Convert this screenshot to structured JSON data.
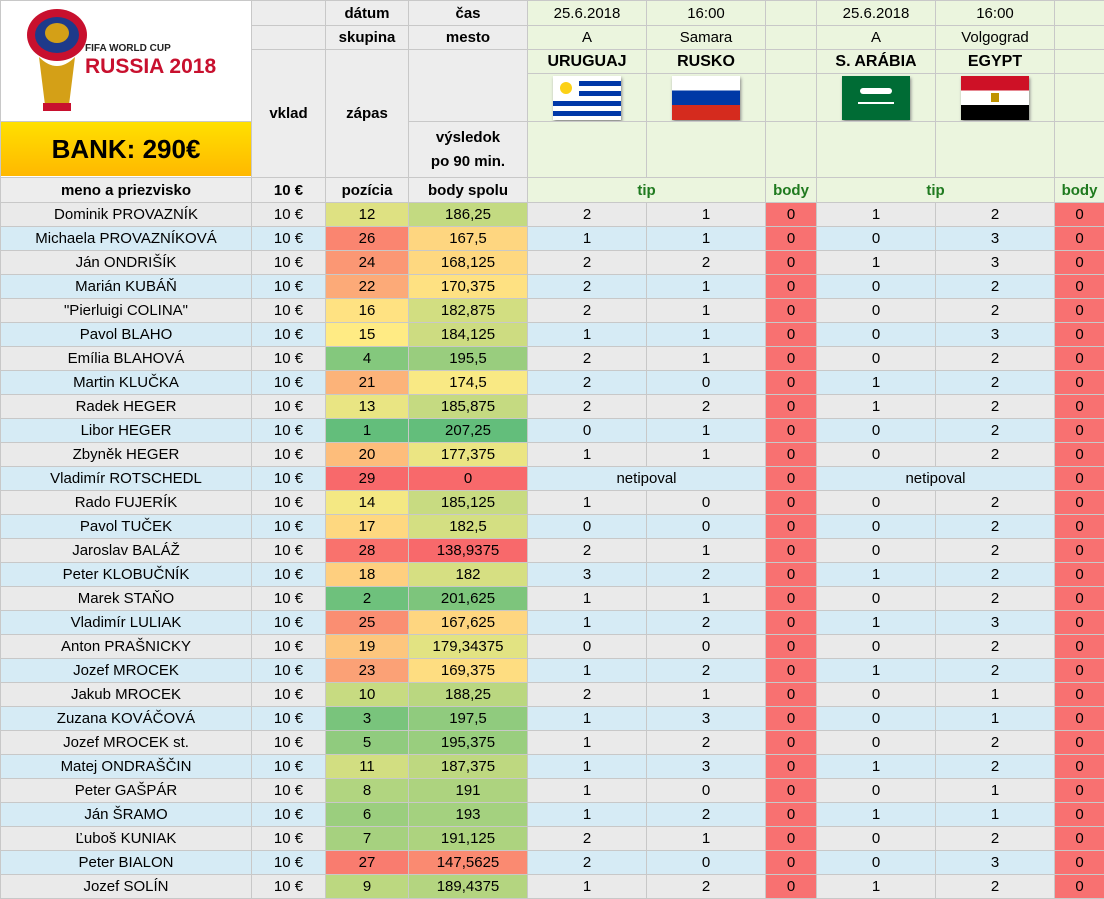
{
  "header": {
    "datum": "dátum",
    "cas": "čas",
    "skupina": "skupina",
    "mesto": "mesto",
    "vklad": "vklad",
    "zapas": "zápas",
    "vysledok1": "výsledok",
    "vysledok2": "po 90 min.",
    "meno": "meno a priezvisko",
    "vklad_val": "10 €",
    "pozicia": "pozícia",
    "body_spolu": "body spolu",
    "tip": "tip",
    "body": "body",
    "bank": "BANK: 290€",
    "logo_top": "FIFA WORLD CUP",
    "logo_main": "RUSSIA 2018"
  },
  "matches": [
    {
      "date": "25.6.2018",
      "time": "16:00",
      "group": "A",
      "city": "Samara",
      "home": "URUGUAJ",
      "away": "RUSKO",
      "home_flag": "uruguay-flag-icon",
      "away_flag": "russia-flag-icon"
    },
    {
      "date": "25.6.2018",
      "time": "16:00",
      "group": "A",
      "city": "Volgograd",
      "home": "S. ARÁBIA",
      "away": "EGYPT",
      "home_flag": "saudi-arabia-flag-icon",
      "away_flag": "egypt-flag-icon"
    }
  ],
  "colors": {
    "row_a": "#eaeaea",
    "row_b": "#d6ebf5",
    "points_red": "#f87171",
    "tip_green": "#1f7a1f"
  },
  "rows": [
    {
      "name": "Dominik PROVAZNÍK",
      "vklad": "10 €",
      "pos": "12",
      "score": "186,25",
      "t1": "2",
      "t2": "1",
      "b1": "0",
      "t3": "1",
      "t4": "2",
      "b2": "0"
    },
    {
      "name": "Michaela PROVAZNÍKOVÁ",
      "vklad": "10 €",
      "pos": "26",
      "score": "167,5",
      "t1": "1",
      "t2": "1",
      "b1": "0",
      "t3": "0",
      "t4": "3",
      "b2": "0"
    },
    {
      "name": "Ján ONDRIŠÍK",
      "vklad": "10 €",
      "pos": "24",
      "score": "168,125",
      "t1": "2",
      "t2": "2",
      "b1": "0",
      "t3": "1",
      "t4": "3",
      "b2": "0"
    },
    {
      "name": "Marián KUBÁŇ",
      "vklad": "10 €",
      "pos": "22",
      "score": "170,375",
      "t1": "2",
      "t2": "1",
      "b1": "0",
      "t3": "0",
      "t4": "2",
      "b2": "0"
    },
    {
      "name": "\"Pierluigi COLINA\"",
      "vklad": "10 €",
      "pos": "16",
      "score": "182,875",
      "t1": "2",
      "t2": "1",
      "b1": "0",
      "t3": "0",
      "t4": "2",
      "b2": "0"
    },
    {
      "name": "Pavol BLAHO",
      "vklad": "10 €",
      "pos": "15",
      "score": "184,125",
      "t1": "1",
      "t2": "1",
      "b1": "0",
      "t3": "0",
      "t4": "3",
      "b2": "0"
    },
    {
      "name": "Emília BLAHOVÁ",
      "vklad": "10 €",
      "pos": "4",
      "score": "195,5",
      "t1": "2",
      "t2": "1",
      "b1": "0",
      "t3": "0",
      "t4": "2",
      "b2": "0"
    },
    {
      "name": "Martin KLUČKA",
      "vklad": "10 €",
      "pos": "21",
      "score": "174,5",
      "t1": "2",
      "t2": "0",
      "b1": "0",
      "t3": "1",
      "t4": "2",
      "b2": "0"
    },
    {
      "name": "Radek HEGER",
      "vklad": "10 €",
      "pos": "13",
      "score": "185,875",
      "t1": "2",
      "t2": "2",
      "b1": "0",
      "t3": "1",
      "t4": "2",
      "b2": "0"
    },
    {
      "name": "Libor HEGER",
      "vklad": "10 €",
      "pos": "1",
      "score": "207,25",
      "t1": "0",
      "t2": "1",
      "b1": "0",
      "t3": "0",
      "t4": "2",
      "b2": "0"
    },
    {
      "name": "Zbyněk HEGER",
      "vklad": "10 €",
      "pos": "20",
      "score": "177,375",
      "t1": "1",
      "t2": "1",
      "b1": "0",
      "t3": "0",
      "t4": "2",
      "b2": "0"
    },
    {
      "name": "Vladimír ROTSCHEDL",
      "vklad": "10 €",
      "pos": "29",
      "score": "0",
      "merged": "netipoval",
      "b1": "0",
      "b2": "0"
    },
    {
      "name": "Rado FUJERÍK",
      "vklad": "10 €",
      "pos": "14",
      "score": "185,125",
      "t1": "1",
      "t2": "0",
      "b1": "0",
      "t3": "0",
      "t4": "2",
      "b2": "0"
    },
    {
      "name": "Pavol TUČEK",
      "vklad": "10 €",
      "pos": "17",
      "score": "182,5",
      "t1": "0",
      "t2": "0",
      "b1": "0",
      "t3": "0",
      "t4": "2",
      "b2": "0"
    },
    {
      "name": "Jaroslav BALÁŽ",
      "vklad": "10 €",
      "pos": "28",
      "score": "138,9375",
      "t1": "2",
      "t2": "1",
      "b1": "0",
      "t3": "0",
      "t4": "2",
      "b2": "0"
    },
    {
      "name": "Peter KLOBUČNÍK",
      "vklad": "10 €",
      "pos": "18",
      "score": "182",
      "t1": "3",
      "t2": "2",
      "b1": "0",
      "t3": "1",
      "t4": "2",
      "b2": "0"
    },
    {
      "name": "Marek STAŇO",
      "vklad": "10 €",
      "pos": "2",
      "score": "201,625",
      "t1": "1",
      "t2": "1",
      "b1": "0",
      "t3": "0",
      "t4": "2",
      "b2": "0"
    },
    {
      "name": "Vladimír LULIAK",
      "vklad": "10 €",
      "pos": "25",
      "score": "167,625",
      "t1": "1",
      "t2": "2",
      "b1": "0",
      "t3": "1",
      "t4": "3",
      "b2": "0"
    },
    {
      "name": "Anton PRAŠNICKY",
      "vklad": "10 €",
      "pos": "19",
      "score": "179,34375",
      "t1": "0",
      "t2": "0",
      "b1": "0",
      "t3": "0",
      "t4": "2",
      "b2": "0"
    },
    {
      "name": "Jozef MROCEK",
      "vklad": "10 €",
      "pos": "23",
      "score": "169,375",
      "t1": "1",
      "t2": "2",
      "b1": "0",
      "t3": "1",
      "t4": "2",
      "b2": "0"
    },
    {
      "name": "Jakub MROCEK",
      "vklad": "10 €",
      "pos": "10",
      "score": "188,25",
      "t1": "2",
      "t2": "1",
      "b1": "0",
      "t3": "0",
      "t4": "1",
      "b2": "0"
    },
    {
      "name": "Zuzana KOVÁČOVÁ",
      "vklad": "10 €",
      "pos": "3",
      "score": "197,5",
      "t1": "1",
      "t2": "3",
      "b1": "0",
      "t3": "0",
      "t4": "1",
      "b2": "0"
    },
    {
      "name": "Jozef MROCEK st.",
      "vklad": "10 €",
      "pos": "5",
      "score": "195,375",
      "t1": "1",
      "t2": "2",
      "b1": "0",
      "t3": "0",
      "t4": "2",
      "b2": "0"
    },
    {
      "name": "Matej ONDRAŠČIN",
      "vklad": "10 €",
      "pos": "11",
      "score": "187,375",
      "t1": "1",
      "t2": "3",
      "b1": "0",
      "t3": "1",
      "t4": "2",
      "b2": "0"
    },
    {
      "name": "Peter GAŠPÁR",
      "vklad": "10 €",
      "pos": "8",
      "score": "191",
      "t1": "1",
      "t2": "0",
      "b1": "0",
      "t3": "0",
      "t4": "1",
      "b2": "0"
    },
    {
      "name": "Ján ŠRAMO",
      "vklad": "10 €",
      "pos": "6",
      "score": "193",
      "t1": "1",
      "t2": "2",
      "b1": "0",
      "t3": "1",
      "t4": "1",
      "b2": "0"
    },
    {
      "name": "Ľuboš KUNIAK",
      "vklad": "10 €",
      "pos": "7",
      "score": "191,125",
      "t1": "2",
      "t2": "1",
      "b1": "0",
      "t3": "0",
      "t4": "2",
      "b2": "0"
    },
    {
      "name": "Peter BIALON",
      "vklad": "10 €",
      "pos": "27",
      "score": "147,5625",
      "t1": "2",
      "t2": "0",
      "b1": "0",
      "t3": "0",
      "t4": "3",
      "b2": "0"
    },
    {
      "name": "Jozef SOLÍN",
      "vklad": "10 €",
      "pos": "9",
      "score": "189,4375",
      "t1": "1",
      "t2": "2",
      "b1": "0",
      "t3": "1",
      "t4": "2",
      "b2": "0"
    }
  ]
}
